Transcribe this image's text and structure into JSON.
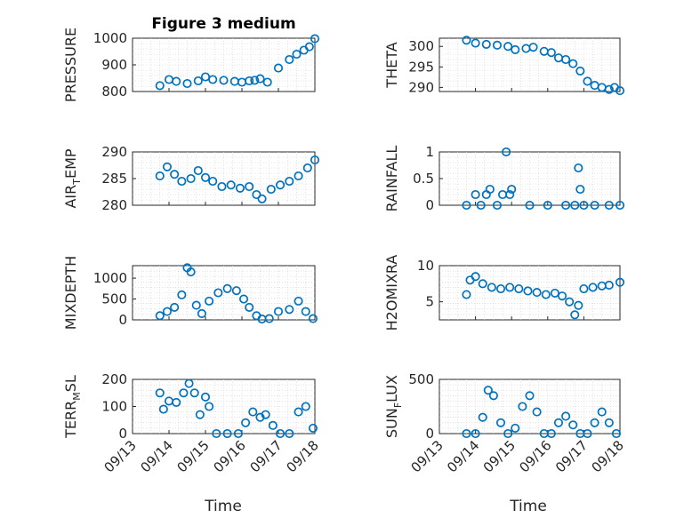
{
  "marker_color": "#0072BD",
  "chart_data": [
    {
      "type": "scatter",
      "title": "Figure 3 medium",
      "ylabel": "PRESSURE",
      "xlim": [
        0,
        5
      ],
      "ylim": [
        800,
        1000
      ],
      "yticks": [
        800,
        900,
        1000
      ],
      "ytick_labels": [
        "800",
        "900",
        "1000"
      ],
      "xticks": [
        0,
        1,
        2,
        3,
        4,
        5
      ],
      "xtick_labels": [],
      "x": [
        0.75,
        1.0,
        1.2,
        1.5,
        1.8,
        2.0,
        2.2,
        2.5,
        2.8,
        3.0,
        3.2,
        3.35,
        3.5,
        3.7,
        4.0,
        4.3,
        4.5,
        4.7,
        4.85,
        5.0
      ],
      "y": [
        822,
        845,
        838,
        830,
        840,
        855,
        845,
        842,
        838,
        835,
        840,
        842,
        848,
        835,
        888,
        920,
        940,
        955,
        968,
        998
      ]
    },
    {
      "type": "scatter",
      "title": "",
      "ylabel": "THETA",
      "xlim": [
        0,
        5
      ],
      "ylim": [
        289,
        302
      ],
      "yticks": [
        290,
        295,
        300
      ],
      "ytick_labels": [
        "290",
        "295",
        "300"
      ],
      "xticks": [
        0,
        1,
        2,
        3,
        4,
        5
      ],
      "xtick_labels": [],
      "x": [
        0.75,
        1.0,
        1.3,
        1.6,
        1.9,
        2.1,
        2.4,
        2.6,
        2.9,
        3.1,
        3.3,
        3.5,
        3.7,
        3.9,
        4.1,
        4.3,
        4.5,
        4.7,
        4.85,
        5.0
      ],
      "y": [
        301.5,
        300.8,
        300.5,
        300.3,
        300.0,
        299.2,
        299.5,
        299.8,
        298.8,
        298.5,
        297.2,
        296.8,
        295.8,
        294.0,
        291.5,
        290.5,
        290.0,
        289.5,
        290.0,
        289.2
      ]
    },
    {
      "type": "scatter",
      "title": "",
      "ylabel": "AIR_TEMP",
      "ylabel_main": "AIR",
      "ylabel_sub": "T",
      "ylabel_rest": "EMP",
      "xlim": [
        0,
        5
      ],
      "ylim": [
        280,
        290
      ],
      "yticks": [
        280,
        285,
        290
      ],
      "ytick_labels": [
        "280",
        "285",
        "290"
      ],
      "xticks": [
        0,
        1,
        2,
        3,
        4,
        5
      ],
      "xtick_labels": [],
      "x": [
        0.75,
        0.95,
        1.15,
        1.35,
        1.6,
        1.8,
        2.0,
        2.2,
        2.45,
        2.7,
        2.95,
        3.2,
        3.4,
        3.55,
        3.8,
        4.05,
        4.3,
        4.55,
        4.8,
        5.0
      ],
      "y": [
        285.5,
        287.2,
        285.8,
        284.5,
        285.0,
        286.5,
        285.2,
        284.5,
        283.5,
        283.8,
        283.2,
        283.5,
        282.0,
        281.2,
        283.0,
        283.8,
        284.5,
        285.5,
        287.0,
        288.5
      ]
    },
    {
      "type": "scatter",
      "title": "",
      "ylabel": "RAINFALL",
      "xlim": [
        0,
        5
      ],
      "ylim": [
        0,
        1
      ],
      "yticks": [
        0,
        0.5,
        1
      ],
      "ytick_labels": [
        "0",
        "0.5",
        "1"
      ],
      "xticks": [
        0,
        1,
        2,
        3,
        4,
        5
      ],
      "xtick_labels": [],
      "x": [
        0.75,
        1.0,
        1.15,
        1.3,
        1.4,
        1.6,
        1.75,
        1.85,
        1.95,
        2.0,
        2.5,
        3.0,
        3.5,
        3.75,
        3.85,
        3.9,
        4.0,
        4.3,
        4.7,
        5.0
      ],
      "y": [
        0,
        0.2,
        0,
        0.2,
        0.3,
        0,
        0.2,
        1.0,
        0.2,
        0.3,
        0,
        0,
        0,
        0,
        0.7,
        0.3,
        0,
        0,
        0,
        0
      ]
    },
    {
      "type": "scatter",
      "title": "",
      "ylabel": "MIXDEPTH",
      "xlim": [
        0,
        5
      ],
      "ylim": [
        0,
        1300
      ],
      "yticks": [
        0,
        500,
        1000
      ],
      "ytick_labels": [
        "0",
        "500",
        "1000"
      ],
      "xticks": [
        0,
        1,
        2,
        3,
        4,
        5
      ],
      "xtick_labels": [],
      "x": [
        0.75,
        0.95,
        1.15,
        1.35,
        1.5,
        1.6,
        1.75,
        1.9,
        2.1,
        2.35,
        2.6,
        2.85,
        3.05,
        3.2,
        3.4,
        3.55,
        3.75,
        4.0,
        4.3,
        4.55,
        4.75,
        4.95
      ],
      "y": [
        100,
        200,
        300,
        600,
        1250,
        1150,
        350,
        150,
        450,
        650,
        750,
        700,
        500,
        300,
        100,
        20,
        30,
        200,
        250,
        450,
        200,
        30
      ]
    },
    {
      "type": "scatter",
      "title": "",
      "ylabel": "H2OMIXRA",
      "xlim": [
        0,
        5
      ],
      "ylim": [
        2.5,
        10
      ],
      "yticks": [
        5,
        10
      ],
      "ytick_labels": [
        "5",
        "10"
      ],
      "xticks": [
        0,
        1,
        2,
        3,
        4,
        5
      ],
      "xtick_labels": [],
      "x": [
        0.75,
        0.85,
        1.0,
        1.2,
        1.45,
        1.7,
        1.95,
        2.2,
        2.45,
        2.7,
        2.95,
        3.2,
        3.4,
        3.6,
        3.75,
        3.85,
        4.0,
        4.25,
        4.5,
        4.7,
        5.0
      ],
      "y": [
        6.0,
        8.0,
        8.5,
        7.5,
        7.0,
        6.8,
        7.0,
        6.8,
        6.5,
        6.3,
        6.0,
        6.2,
        5.8,
        5.0,
        3.2,
        4.5,
        6.8,
        7.0,
        7.2,
        7.3,
        7.7
      ]
    },
    {
      "type": "scatter",
      "title": "",
      "ylabel": "TERR_MSL",
      "ylabel_main": "TERR",
      "ylabel_sub": "M",
      "ylabel_rest": "SL",
      "xlim": [
        0,
        5
      ],
      "ylim": [
        0,
        200
      ],
      "yticks": [
        0,
        100,
        200
      ],
      "ytick_labels": [
        "0",
        "100",
        "200"
      ],
      "xticks": [
        0,
        1,
        2,
        3,
        4,
        5
      ],
      "xtick_labels": [
        "09/13",
        "09/14",
        "09/15",
        "09/16",
        "09/17",
        "09/18"
      ],
      "x": [
        0.75,
        0.85,
        1.0,
        1.2,
        1.4,
        1.55,
        1.7,
        1.85,
        2.0,
        2.1,
        2.3,
        2.6,
        2.9,
        3.1,
        3.3,
        3.5,
        3.65,
        3.85,
        4.05,
        4.3,
        4.55,
        4.75,
        4.95
      ],
      "y": [
        150,
        90,
        120,
        115,
        150,
        185,
        150,
        70,
        135,
        100,
        0,
        0,
        0,
        40,
        80,
        60,
        70,
        30,
        0,
        0,
        80,
        100,
        20
      ]
    },
    {
      "type": "scatter",
      "title": "",
      "ylabel": "SUN_FLUX",
      "ylabel_main": "SUN",
      "ylabel_sub": "F",
      "ylabel_rest": "LUX",
      "xlim": [
        0,
        5
      ],
      "ylim": [
        0,
        500
      ],
      "yticks": [
        0,
        500
      ],
      "ytick_labels": [
        "0",
        "500"
      ],
      "xticks": [
        0,
        1,
        2,
        3,
        4,
        5
      ],
      "xtick_labels": [
        "09/13",
        "09/14",
        "09/15",
        "09/16",
        "09/17",
        "09/18"
      ],
      "x": [
        0.75,
        1.0,
        1.2,
        1.35,
        1.5,
        1.7,
        1.9,
        2.1,
        2.3,
        2.5,
        2.7,
        2.9,
        3.1,
        3.3,
        3.5,
        3.7,
        3.9,
        4.1,
        4.3,
        4.5,
        4.7,
        4.9
      ],
      "y": [
        0,
        0,
        150,
        400,
        350,
        100,
        0,
        50,
        250,
        350,
        200,
        0,
        0,
        100,
        160,
        80,
        0,
        0,
        100,
        200,
        100,
        0
      ]
    }
  ],
  "xlabel_left": "Time",
  "xlabel_right": "Time"
}
